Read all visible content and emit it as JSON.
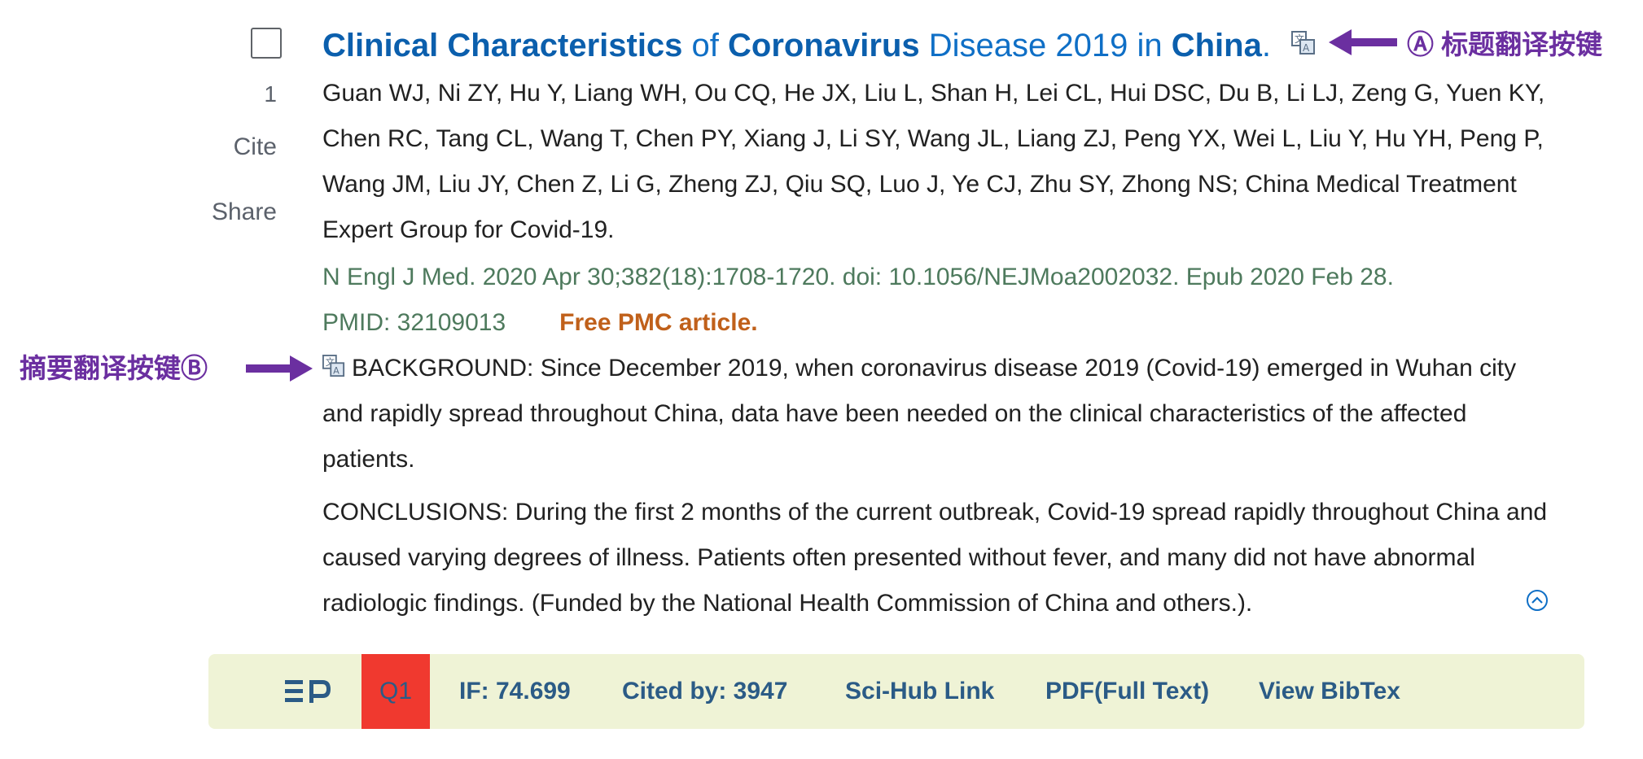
{
  "article": {
    "index": "1",
    "cite_label": "Cite",
    "share_label": "Share",
    "title_parts": [
      {
        "text": "Clinical Characteristics",
        "highlight": true
      },
      {
        "text": " of ",
        "highlight": false
      },
      {
        "text": "Coronavirus",
        "highlight": true
      },
      {
        "text": " Disease 2019 in ",
        "highlight": false
      },
      {
        "text": "China",
        "highlight": true
      },
      {
        "text": ".",
        "highlight": false
      }
    ],
    "authors": "Guan WJ, Ni ZY, Hu Y, Liang WH, Ou CQ, He JX, Liu L, Shan H, Lei CL, Hui DSC, Du B, Li LJ, Zeng G, Yuen KY, Chen RC, Tang CL, Wang T, Chen PY, Xiang J, Li SY, Wang JL, Liang ZJ, Peng YX, Wei L, Liu Y, Hu YH, Peng P, Wang JM, Liu JY, Chen Z, Li G, Zheng ZJ, Qiu SQ, Luo J, Ye CJ, Zhu SY, Zhong NS; China Medical Treatment Expert Group for Covid-19.",
    "citation": "N Engl J Med. 2020 Apr 30;382(18):1708-1720. doi: 10.1056/NEJMoa2002032. Epub 2020 Feb 28.",
    "pmid": "PMID: 32109013",
    "free_pmc": "Free PMC article.",
    "background": "BACKGROUND: Since December 2019, when coronavirus disease 2019 (Covid-19) emerged in Wuhan city and rapidly spread throughout China, data have been needed on the clinical characteristics of the affected patients.",
    "conclusions": "CONCLUSIONS: During the first 2 months of the current outbreak, Covid-19 spread rapidly throughout China and caused varying degrees of illness. Patients often presented without fever, and many did not have abnormal radiologic findings. (Funded by the National Health Commission of China and others.)."
  },
  "annotations": {
    "title_translate": "Ⓐ 标题翻译按键",
    "abstract_translate": "摘要翻译按键Ⓑ",
    "color": "#6b2fa0"
  },
  "toolbar": {
    "logo": "EP",
    "quartile": "Q1",
    "impact_factor": "IF: 74.699",
    "cited_by": "Cited by: 3947",
    "scihub": "Sci-Hub Link",
    "pdf": "PDF(Full Text)",
    "bibtex": "View BibTex"
  },
  "icons": {
    "title_translate": "translate-icon",
    "abstract_translate": "translate-icon",
    "collapse": "chevron-up-circle-icon"
  }
}
